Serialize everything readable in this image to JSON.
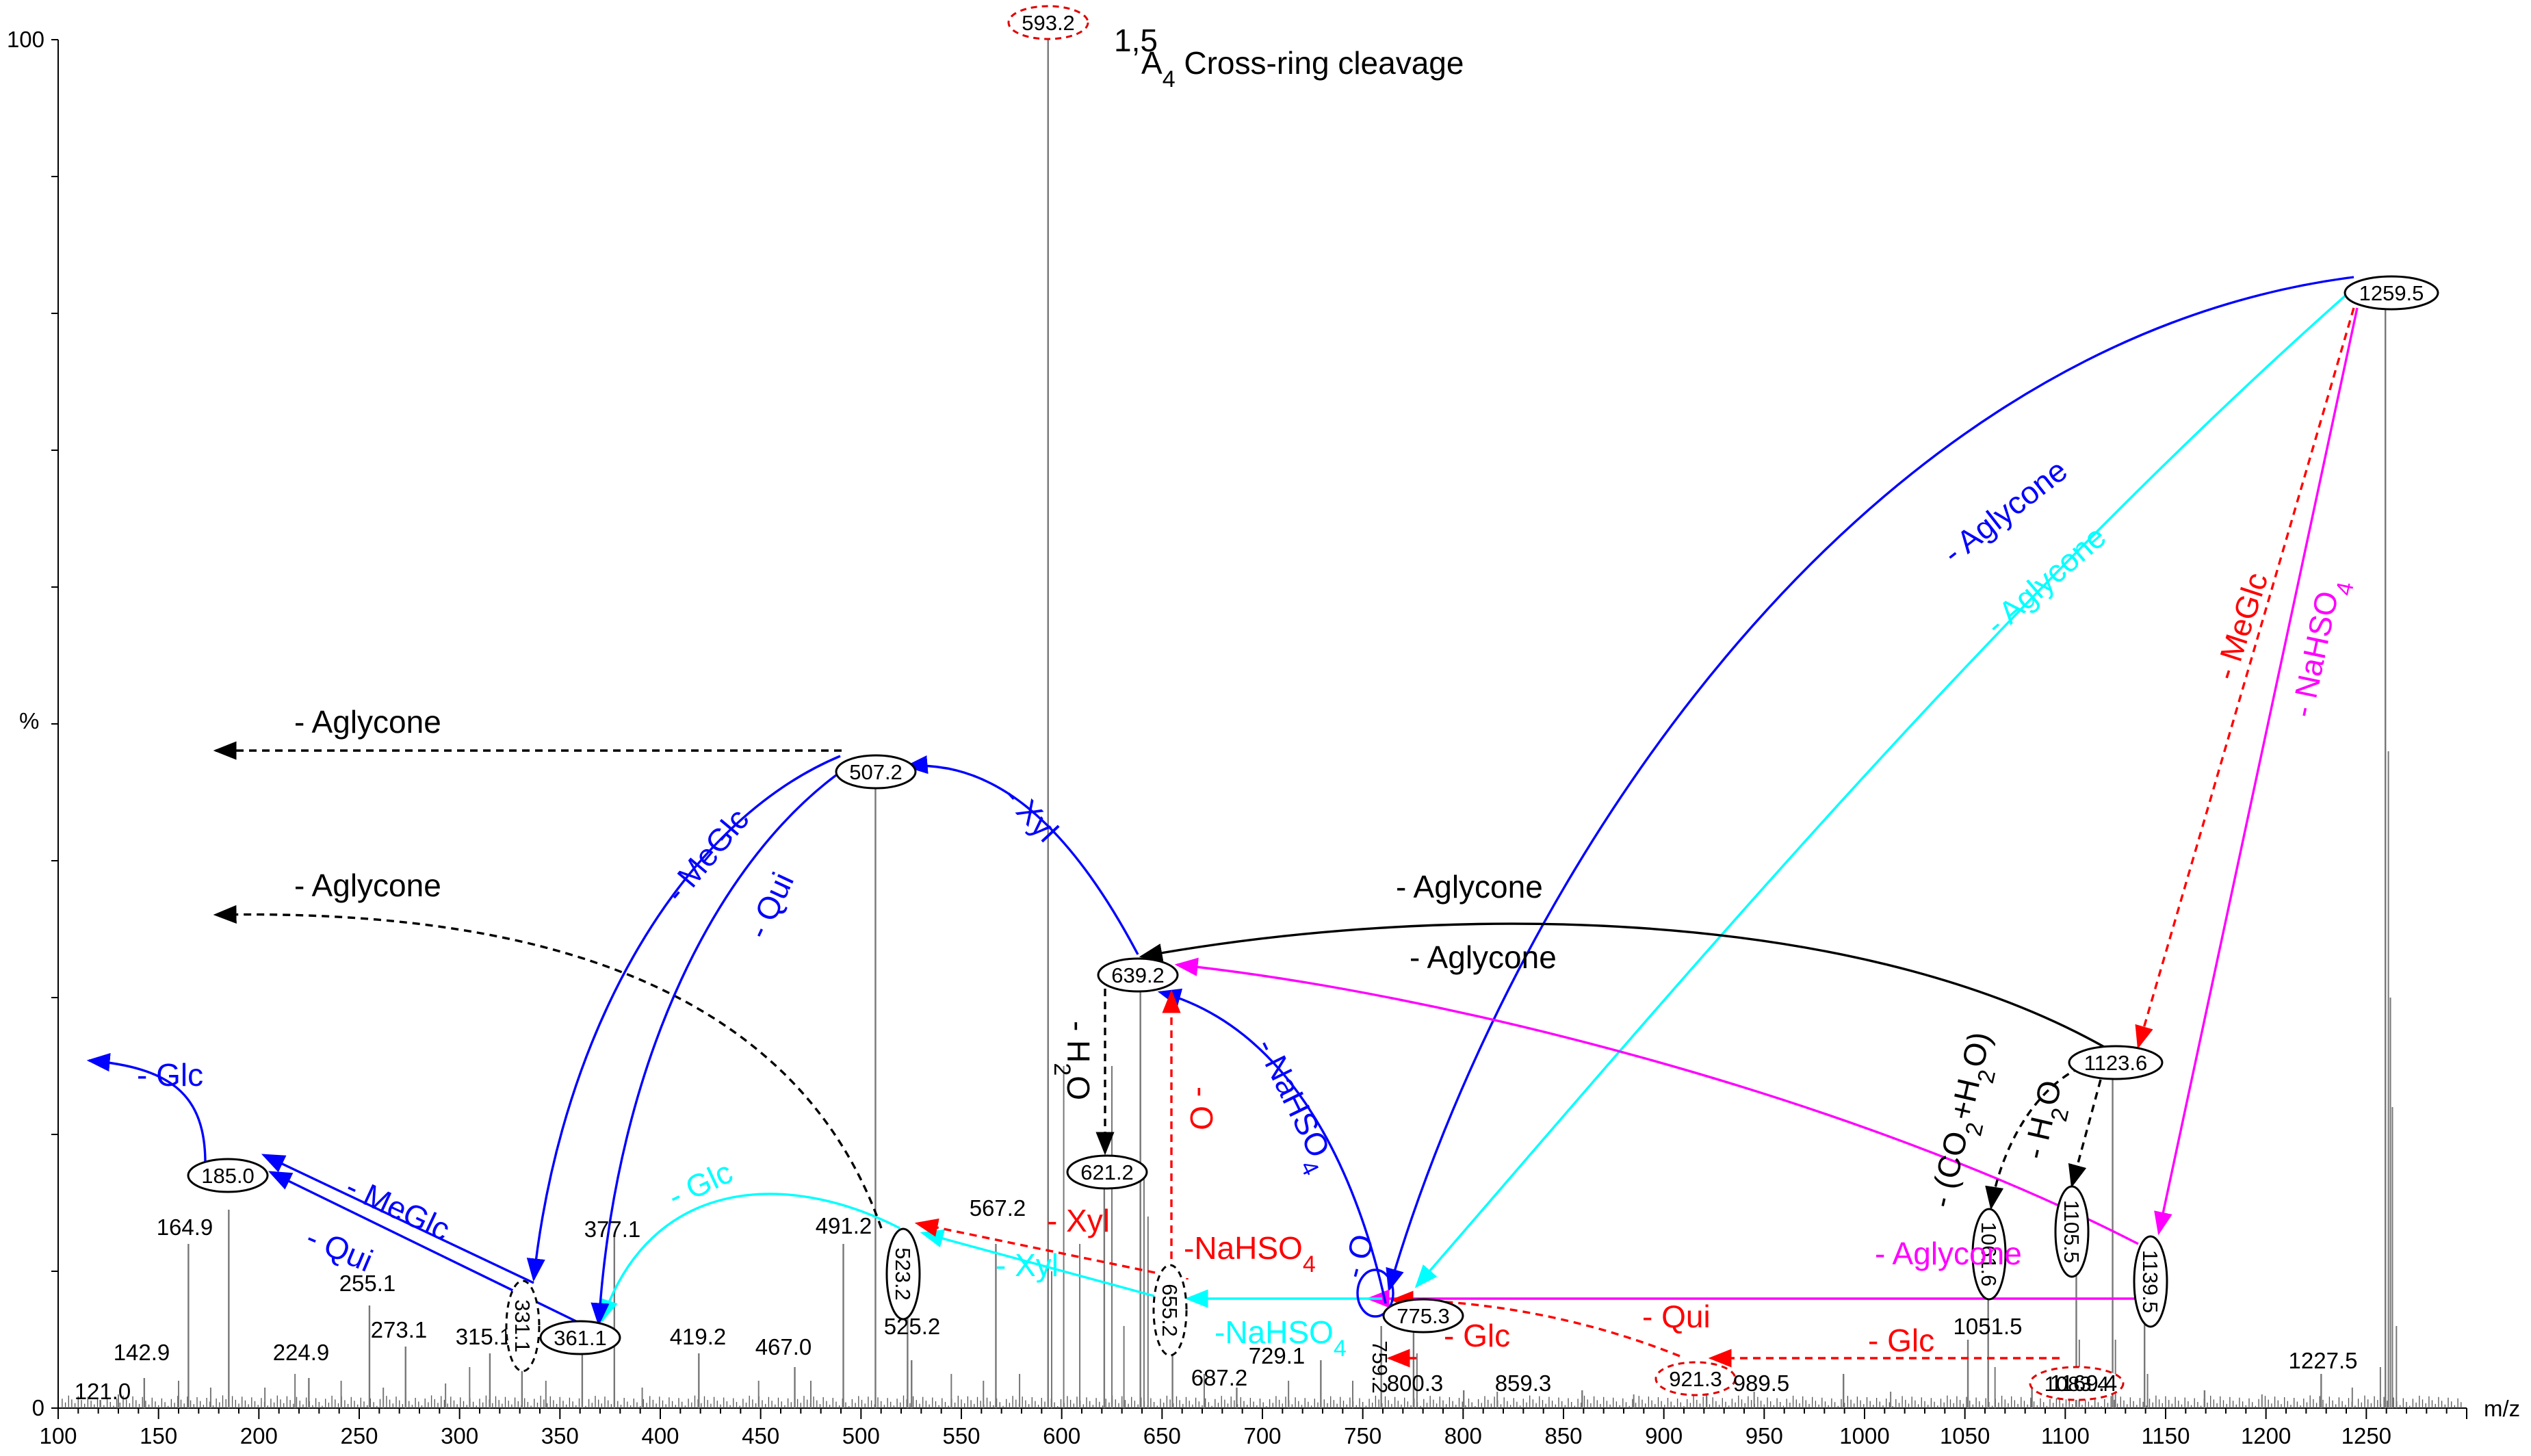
{
  "chart_data": {
    "type": "bar",
    "title": "",
    "xlabel": "m/z",
    "ylabel": "%",
    "xlim": [
      100,
      1300
    ],
    "ylim": [
      0,
      100
    ],
    "xticks": [
      "100",
      "150",
      "200",
      "250",
      "300",
      "350",
      "400",
      "450",
      "500",
      "550",
      "600",
      "650",
      "700",
      "750",
      "800",
      "850",
      "900",
      "950",
      "1000",
      "1050",
      "1100",
      "1150",
      "1200",
      "1250"
    ],
    "yticks": [
      "0",
      "100"
    ],
    "peaks": [
      {
        "mz": 121.0,
        "rel": 0.6,
        "label": "121.0"
      },
      {
        "mz": 142.9,
        "rel": 2.2,
        "label": "142.9"
      },
      {
        "mz": 164.9,
        "rel": 12.0,
        "label": "164.9"
      },
      {
        "mz": 185.0,
        "rel": 14.5,
        "label": "185.0",
        "circled": "solid"
      },
      {
        "mz": 224.9,
        "rel": 2.2,
        "label": "224.9"
      },
      {
        "mz": 255.1,
        "rel": 7.5,
        "label": "255.1"
      },
      {
        "mz": 273.1,
        "rel": 4.5,
        "label": "273.1"
      },
      {
        "mz": 315.1,
        "rel": 4.0,
        "label": "315.1"
      },
      {
        "mz": 331.1,
        "rel": 5.0,
        "label": "331.1",
        "circled": "dashed",
        "vertical": true
      },
      {
        "mz": 361.1,
        "rel": 6.0,
        "label": "361.1",
        "circled": "solid"
      },
      {
        "mz": 377.1,
        "rel": 12.5,
        "label": "377.1"
      },
      {
        "mz": 419.2,
        "rel": 4.0,
        "label": "419.2"
      },
      {
        "mz": 467.0,
        "rel": 3.0,
        "label": "467.0"
      },
      {
        "mz": 491.2,
        "rel": 12.0,
        "label": "491.2"
      },
      {
        "mz": 507.2,
        "rel": 45.5,
        "label": "507.2",
        "circled": "solid"
      },
      {
        "mz": 523.2,
        "rel": 10.0,
        "label": "523.2",
        "circled": "solid",
        "vertical": true
      },
      {
        "mz": 525.2,
        "rel": 3.5,
        "label": "525.2"
      },
      {
        "mz": 567.2,
        "rel": 12.0,
        "label": "567.2"
      },
      {
        "mz": 593.2,
        "rel": 100.0,
        "label": "593.2",
        "circled": "dashed-red"
      },
      {
        "mz": 621.2,
        "rel": 17.0,
        "label": "621.2",
        "circled": "solid"
      },
      {
        "mz": 639.2,
        "rel": 31.0,
        "label": "639.2",
        "circled": "solid"
      },
      {
        "mz": 655.2,
        "rel": 7.0,
        "label": "655.2",
        "circled": "dashed",
        "vertical": true
      },
      {
        "mz": 687.2,
        "rel": 1.5,
        "label": "687.2"
      },
      {
        "mz": 729.1,
        "rel": 3.5,
        "label": "729.1"
      },
      {
        "mz": 759.2,
        "rel": 6.0,
        "label": "759.2",
        "vertical": true
      },
      {
        "mz": 775.3,
        "rel": 8.0,
        "label": "775.3",
        "circled": "solid"
      },
      {
        "mz": 800.3,
        "rel": 1.3,
        "label": "800.3"
      },
      {
        "mz": 859.3,
        "rel": 1.3,
        "label": "859.3"
      },
      {
        "mz": 921.3,
        "rel": 2.0,
        "label": "921.3",
        "circled": "dashed-red"
      },
      {
        "mz": 989.5,
        "rel": 2.5,
        "label": "989.5"
      },
      {
        "mz": 1051.5,
        "rel": 5.0,
        "label": "1051.5"
      },
      {
        "mz": 1061.6,
        "rel": 11.0,
        "label": "1061.6",
        "circled": "solid",
        "vertical": true
      },
      {
        "mz": 1083.4,
        "rel": 2.0,
        "label": "1083.4",
        "circled": "dashed-red"
      },
      {
        "mz": 1105.5,
        "rel": 14.0,
        "label": "1105.5",
        "circled": "solid",
        "vertical": true
      },
      {
        "mz": 1123.6,
        "rel": 25.0,
        "label": "1123.6",
        "circled": "solid"
      },
      {
        "mz": 1139.5,
        "rel": 9.0,
        "label": "1139.5",
        "circled": "solid",
        "vertical": true
      },
      {
        "mz": 1169.4,
        "rel": 1.3,
        "label": "1169.4"
      },
      {
        "mz": 1227.5,
        "rel": 2.5,
        "label": "1227.5"
      },
      {
        "mz": 1259.5,
        "rel": 82.0,
        "label": "1259.5",
        "circled": "solid"
      }
    ],
    "minor_peaks": [
      {
        "mz": 130,
        "rel": 1.0
      },
      {
        "mz": 160,
        "rel": 2.0
      },
      {
        "mz": 176,
        "rel": 1.5
      },
      {
        "mz": 203,
        "rel": 1.5
      },
      {
        "mz": 218,
        "rel": 2.5
      },
      {
        "mz": 241,
        "rel": 2.0
      },
      {
        "mz": 262,
        "rel": 1.5
      },
      {
        "mz": 293,
        "rel": 1.8
      },
      {
        "mz": 305,
        "rel": 3.0
      },
      {
        "mz": 343,
        "rel": 2.0
      },
      {
        "mz": 391,
        "rel": 1.5
      },
      {
        "mz": 449,
        "rel": 2.0
      },
      {
        "mz": 475,
        "rel": 2.0
      },
      {
        "mz": 545,
        "rel": 2.5
      },
      {
        "mz": 561,
        "rel": 2.0
      },
      {
        "mz": 579,
        "rel": 2.5
      },
      {
        "mz": 595,
        "rel": 10.0
      },
      {
        "mz": 601,
        "rel": 25.0
      },
      {
        "mz": 609,
        "rel": 12.0
      },
      {
        "mz": 625,
        "rel": 25.0
      },
      {
        "mz": 631,
        "rel": 6.0
      },
      {
        "mz": 641,
        "rel": 17.0
      },
      {
        "mz": 643,
        "rel": 14.0
      },
      {
        "mz": 671,
        "rel": 2.5
      },
      {
        "mz": 713,
        "rel": 2.0
      },
      {
        "mz": 745,
        "rel": 2.0
      },
      {
        "mz": 777,
        "rel": 4.0
      },
      {
        "mz": 817,
        "rel": 1.2
      },
      {
        "mz": 885,
        "rel": 1.0
      },
      {
        "mz": 945,
        "rel": 1.2
      },
      {
        "mz": 1013,
        "rel": 1.2
      },
      {
        "mz": 1065,
        "rel": 3.0
      },
      {
        "mz": 1107,
        "rel": 5.0
      },
      {
        "mz": 1125,
        "rel": 5.0
      },
      {
        "mz": 1141,
        "rel": 2.5
      },
      {
        "mz": 1198,
        "rel": 1.0
      },
      {
        "mz": 1243,
        "rel": 1.5
      },
      {
        "mz": 1257,
        "rel": 3.0
      },
      {
        "mz": 1261,
        "rel": 48.0
      },
      {
        "mz": 1262,
        "rel": 30.0
      },
      {
        "mz": 1263,
        "rel": 22.0
      },
      {
        "mz": 1265,
        "rel": 6.0
      }
    ],
    "annotations": [
      {
        "id": "aglycone-1259-775-blue",
        "text": "- Aglycone",
        "color": "#0000ff"
      },
      {
        "id": "aglycone-1259-775-cyan",
        "text": "- Aglycone",
        "color": "#00ffff"
      },
      {
        "id": "meglc-1259-1123",
        "text": "- MeGlc",
        "color": "#ff0000"
      },
      {
        "id": "nahso4-1259-1139",
        "text": "- NaHSO4",
        "color": "#ff00ff"
      },
      {
        "id": "aglycone-1123-639-black",
        "text": "- Aglycone",
        "color": "#000000"
      },
      {
        "id": "aglycone-1139-639-magenta",
        "text": "- Aglycone",
        "color": "#000000"
      },
      {
        "id": "aglycone-1139-775-magenta",
        "text": "- Aglycone",
        "color": "#ff00ff"
      },
      {
        "id": "co2-h2o-1123-1061",
        "text": "- (CO2+H2O)",
        "color": "#000000"
      },
      {
        "id": "h2o-1123-1105",
        "text": "- H2O",
        "color": "#000000"
      },
      {
        "id": "glc-1083-921",
        "text": "- Glc",
        "color": "#ff0000"
      },
      {
        "id": "qui-921-759",
        "text": "- Qui",
        "color": "#ff0000"
      },
      {
        "id": "glc-759-775",
        "text": "- Glc",
        "color": "#ff0000"
      },
      {
        "id": "o-775-759",
        "text": "- O",
        "color": "#0000ff"
      },
      {
        "id": "nahso4-775-639",
        "text": "- NaHSO4",
        "color": "#0000ff"
      },
      {
        "id": "nahso4-775-655",
        "text": "-NaHSO4",
        "color": "#00ffff"
      },
      {
        "id": "nahso4-655-red",
        "text": "-NaHSO4",
        "color": "#ff0000"
      },
      {
        "id": "o-655-639",
        "text": "- O",
        "color": "#ff0000"
      },
      {
        "id": "h2o-639-621",
        "text": "- H2O",
        "color": "#000000"
      },
      {
        "id": "xyl-639-507",
        "text": "- Xyl",
        "color": "#0000ff"
      },
      {
        "id": "xyl-655-523-cyan",
        "text": "- Xyl",
        "color": "#00ffff"
      },
      {
        "id": "xyl-655-523-red",
        "text": "- Xyl",
        "color": "#ff0000"
      },
      {
        "id": "glc-523-361",
        "text": "- Glc",
        "color": "#00ffff"
      },
      {
        "id": "aglycone-507-left",
        "text": "- Aglycone",
        "color": "#000000"
      },
      {
        "id": "aglycone-523-left",
        "text": "- Aglycone",
        "color": "#000000"
      },
      {
        "id": "meglc-507-361",
        "text": "- MeGlc",
        "color": "#0000ff"
      },
      {
        "id": "qui-507-361",
        "text": "- Qui",
        "color": "#0000ff"
      },
      {
        "id": "meglc-361-185",
        "text": "- MeGlc",
        "color": "#0000ff"
      },
      {
        "id": "qui-361-185",
        "text": "- Qui",
        "color": "#0000ff"
      },
      {
        "id": "glc-185-left",
        "text": "- Glc",
        "color": "#0000ff"
      },
      {
        "id": "cross-ring",
        "text": "A4 Cross-ring cleavage",
        "superscript": "1,5",
        "color": "#000000"
      }
    ],
    "grid": false,
    "legend": "none"
  }
}
